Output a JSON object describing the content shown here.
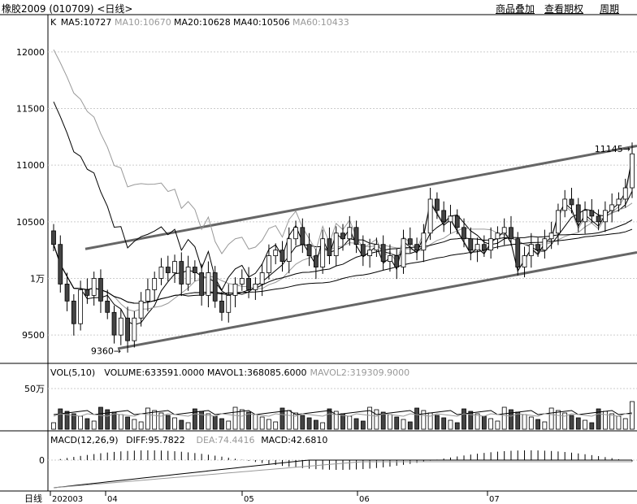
{
  "header": {
    "title": "橡胶2009 (010709) <日线>",
    "menu": [
      "商品叠加",
      "查看期权",
      "周期"
    ]
  },
  "price_panel": {
    "legend": [
      {
        "text": "K",
        "color": "#000000"
      },
      {
        "text": "MA5:10727",
        "color": "#000000"
      },
      {
        "text": "MA10:10670",
        "color": "#999999"
      },
      {
        "text": "MA20:10628",
        "color": "#000000"
      },
      {
        "text": "MA40:10506",
        "color": "#000000"
      },
      {
        "text": "MA60:10433",
        "color": "#999999"
      }
    ],
    "y_ticks": [
      "12000",
      "11500",
      "11000",
      "10500",
      "1万",
      "9500"
    ],
    "high_label": "11145",
    "low_label": "9360"
  },
  "volume_panel": {
    "legend": [
      {
        "text": "VOL(5,10)",
        "color": "#000000"
      },
      {
        "text": "VOLUME:633591.0000",
        "color": "#000000"
      },
      {
        "text": "MAVOL1:368085.6000",
        "color": "#000000"
      },
      {
        "text": "MAVOL2:319309.9000",
        "color": "#999999"
      }
    ],
    "y_ticks": [
      "50万"
    ]
  },
  "macd_panel": {
    "legend": [
      {
        "text": "MACD(12,26,9)",
        "color": "#000000"
      },
      {
        "text": "DIFF:95.7822",
        "color": "#000000"
      },
      {
        "text": "DEA:74.4416",
        "color": "#999999"
      },
      {
        "text": "MACD:42.6810",
        "color": "#000000"
      }
    ],
    "y_ticks": [
      "0"
    ]
  },
  "x_axis": {
    "period_label": "日线",
    "labels": [
      "202003",
      "04",
      "05",
      "06",
      "07"
    ]
  },
  "colors": {
    "up": "#ffffff",
    "down": "#444444",
    "grid": "#cccccc",
    "trend": "#666666"
  },
  "chart_data": {
    "type": "candlestick",
    "ylim": [
      9300,
      12200
    ],
    "low": 9360,
    "high": 11145,
    "closes": [
      10300,
      9950,
      9800,
      9600,
      9900,
      9850,
      10000,
      9800,
      9700,
      9500,
      9650,
      9450,
      9650,
      9800,
      9900,
      10000,
      10100,
      10050,
      10150,
      9950,
      10100,
      10050,
      9850,
      10050,
      9800,
      9700,
      9850,
      9950,
      10000,
      9900,
      9950,
      10050,
      10200,
      10250,
      10150,
      10350,
      10450,
      10300,
      10200,
      10100,
      10350,
      10200,
      10400,
      10350,
      10450,
      10300,
      10200,
      10250,
      10300,
      10150,
      10200,
      10100,
      10350,
      10300,
      10250,
      10400,
      10700,
      10600,
      10500,
      10550,
      10450,
      10350,
      10250,
      10300,
      10250,
      10350,
      10400,
      10450,
      10350,
      10100,
      10200,
      10300,
      10250,
      10350,
      10400,
      10600,
      10700,
      10650,
      10500,
      10600,
      10550,
      10500,
      10600,
      10650,
      10700,
      10800,
      11100
    ],
    "volume_scale": "万"
  }
}
